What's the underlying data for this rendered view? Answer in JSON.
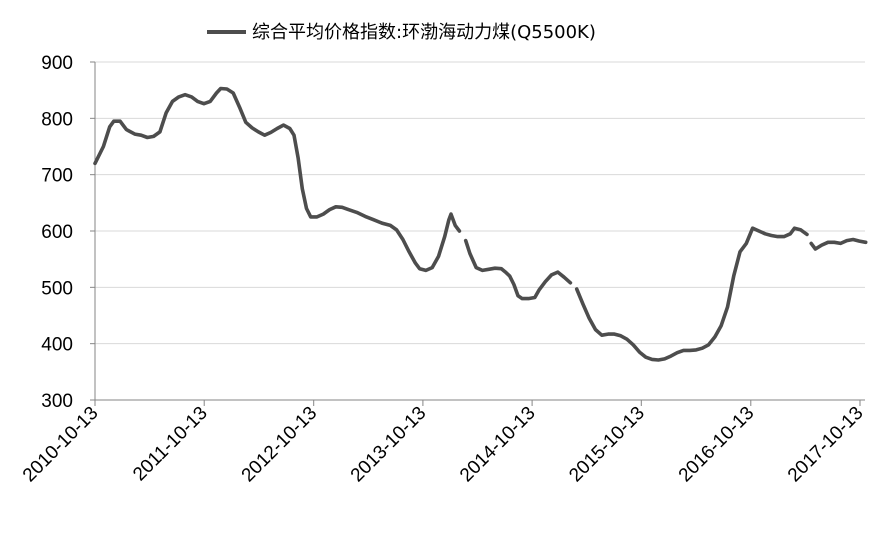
{
  "chart_data": {
    "type": "line",
    "title": "",
    "xlabel": "",
    "ylabel": "",
    "ylim": [
      300,
      900
    ],
    "y_ticks": [
      "300",
      "400",
      "500",
      "600",
      "700",
      "800",
      "900"
    ],
    "x_ticks": [
      "2010-10-13",
      "2011-10-13",
      "2012-10-13",
      "2013-10-13",
      "2014-10-13",
      "2015-10-13",
      "2016-10-13",
      "2017-10-13"
    ],
    "grid": "horizontal",
    "legend_position": "top-center",
    "series": [
      {
        "name": "综合平均价格指数:环渤海动力煤(Q5500K)",
        "color": "#4d4d4d",
        "segments": [
          [
            [
              "2010-10-13",
              720
            ],
            [
              "2010-11-10",
              750
            ],
            [
              "2010-12-01",
              785
            ],
            [
              "2010-12-15",
              795
            ],
            [
              "2011-01-05",
              795
            ],
            [
              "2011-01-26",
              780
            ],
            [
              "2011-02-23",
              772
            ],
            [
              "2011-03-16",
              770
            ],
            [
              "2011-04-06",
              766
            ],
            [
              "2011-04-27",
              768
            ],
            [
              "2011-05-18",
              776
            ],
            [
              "2011-06-08",
              810
            ],
            [
              "2011-06-29",
              830
            ],
            [
              "2011-07-20",
              838
            ],
            [
              "2011-08-10",
              842
            ],
            [
              "2011-09-01",
              838
            ],
            [
              "2011-09-21",
              830
            ],
            [
              "2011-10-12",
              826
            ],
            [
              "2011-11-02",
              830
            ],
            [
              "2011-11-23",
              845
            ],
            [
              "2011-12-07",
              853
            ],
            [
              "2011-12-28",
              852
            ],
            [
              "2012-01-18",
              845
            ],
            [
              "2012-02-08",
              820
            ],
            [
              "2012-02-29",
              793
            ],
            [
              "2012-03-21",
              783
            ],
            [
              "2012-04-11",
              776
            ],
            [
              "2012-05-02",
              770
            ],
            [
              "2012-05-23",
              775
            ],
            [
              "2012-06-13",
              782
            ],
            [
              "2012-07-04",
              788
            ],
            [
              "2012-07-25",
              782
            ],
            [
              "2012-08-08",
              770
            ],
            [
              "2012-08-22",
              730
            ],
            [
              "2012-09-05",
              675
            ],
            [
              "2012-09-19",
              640
            ],
            [
              "2012-10-03",
              625
            ],
            [
              "2012-10-24",
              625
            ],
            [
              "2012-11-14",
              630
            ],
            [
              "2012-12-05",
              638
            ],
            [
              "2012-12-26",
              643
            ],
            [
              "2013-01-16",
              642
            ],
            [
              "2013-02-06",
              638
            ],
            [
              "2013-03-06",
              633
            ],
            [
              "2013-04-03",
              626
            ],
            [
              "2013-05-01",
              620
            ],
            [
              "2013-05-29",
              614
            ],
            [
              "2013-06-26",
              610
            ],
            [
              "2013-07-17",
              602
            ],
            [
              "2013-08-07",
              585
            ],
            [
              "2013-08-28",
              563
            ],
            [
              "2013-09-18",
              543
            ],
            [
              "2013-10-02",
              533
            ],
            [
              "2013-10-23",
              530
            ],
            [
              "2013-11-13",
              535
            ],
            [
              "2013-12-04",
              555
            ],
            [
              "2013-12-25",
              590
            ],
            [
              "2014-01-08",
              620
            ],
            [
              "2014-01-15",
              630
            ],
            [
              "2014-01-29",
              610
            ],
            [
              "2014-02-12",
              600
            ]
          ],
          [
            [
              "2014-03-05",
              583
            ],
            [
              "2014-03-19",
              560
            ],
            [
              "2014-04-09",
              535
            ],
            [
              "2014-04-30",
              530
            ],
            [
              "2014-05-21",
              532
            ],
            [
              "2014-06-11",
              534
            ],
            [
              "2014-07-02",
              533
            ],
            [
              "2014-07-16",
              527
            ],
            [
              "2014-07-30",
              520
            ],
            [
              "2014-08-13",
              505
            ],
            [
              "2014-08-27",
              485
            ],
            [
              "2014-09-10",
              480
            ],
            [
              "2014-10-01",
              480
            ],
            [
              "2014-10-22",
              482
            ],
            [
              "2014-11-05",
              495
            ],
            [
              "2014-11-26",
              510
            ],
            [
              "2014-12-17",
              522
            ],
            [
              "2015-01-07",
              527
            ],
            [
              "2015-01-28",
              518
            ],
            [
              "2015-02-18",
              508
            ]
          ],
          [
            [
              "2015-03-11",
              497
            ],
            [
              "2015-04-01",
              470
            ],
            [
              "2015-04-22",
              445
            ],
            [
              "2015-05-13",
              425
            ],
            [
              "2015-06-03",
              415
            ],
            [
              "2015-06-24",
              417
            ],
            [
              "2015-07-15",
              417
            ],
            [
              "2015-08-05",
              414
            ],
            [
              "2015-08-26",
              408
            ],
            [
              "2015-09-16",
              398
            ],
            [
              "2015-10-07",
              385
            ],
            [
              "2015-10-28",
              376
            ],
            [
              "2015-11-18",
              372
            ],
            [
              "2015-12-09",
              371
            ],
            [
              "2015-12-30",
              373
            ],
            [
              "2016-01-20",
              378
            ],
            [
              "2016-02-10",
              384
            ],
            [
              "2016-03-02",
              388
            ],
            [
              "2016-03-23",
              388
            ],
            [
              "2016-04-13",
              389
            ],
            [
              "2016-05-04",
              392
            ],
            [
              "2016-05-25",
              398
            ],
            [
              "2016-06-15",
              412
            ],
            [
              "2016-07-06",
              432
            ],
            [
              "2016-07-27",
              465
            ],
            [
              "2016-08-17",
              520
            ],
            [
              "2016-09-07",
              563
            ],
            [
              "2016-09-28",
              578
            ],
            [
              "2016-10-19",
              605
            ],
            [
              "2016-11-09",
              600
            ],
            [
              "2016-11-30",
              595
            ],
            [
              "2016-12-21",
              592
            ],
            [
              "2017-01-11",
              590
            ],
            [
              "2017-02-01",
              590
            ],
            [
              "2017-02-22",
              595
            ],
            [
              "2017-03-08",
              605
            ],
            [
              "2017-03-29",
              602
            ],
            [
              "2017-04-19",
              594
            ]
          ],
          [
            [
              "2017-05-03",
              578
            ],
            [
              "2017-05-17",
              568
            ],
            [
              "2017-06-07",
              575
            ],
            [
              "2017-06-28",
              580
            ],
            [
              "2017-07-19",
              580
            ],
            [
              "2017-08-09",
              578
            ],
            [
              "2017-08-30",
              583
            ],
            [
              "2017-09-20",
              585
            ],
            [
              "2017-10-11",
              582
            ],
            [
              "2017-11-01",
              580
            ]
          ]
        ]
      }
    ]
  }
}
